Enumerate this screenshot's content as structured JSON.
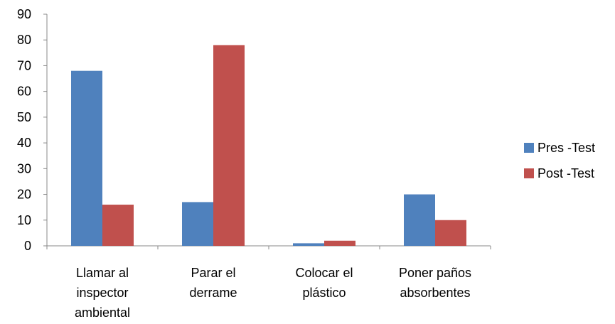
{
  "chart_data": {
    "type": "bar",
    "categories": [
      [
        "Llamar al",
        "inspector",
        "ambiental"
      ],
      [
        "Parar el",
        "derrame"
      ],
      [
        "Colocar el",
        "plástico"
      ],
      [
        "Poner paños",
        "absorbentes"
      ]
    ],
    "series": [
      {
        "name": "Pres -Test",
        "color": "#4F81BD",
        "values": [
          68,
          17,
          1,
          20
        ]
      },
      {
        "name": "Post -Test",
        "color": "#C0504D",
        "values": [
          16,
          78,
          2,
          10
        ]
      }
    ],
    "ylim": [
      0,
      90
    ],
    "yticks": [
      0,
      10,
      20,
      30,
      40,
      50,
      60,
      70,
      80,
      90
    ],
    "grid": false,
    "legend_position": "right"
  }
}
